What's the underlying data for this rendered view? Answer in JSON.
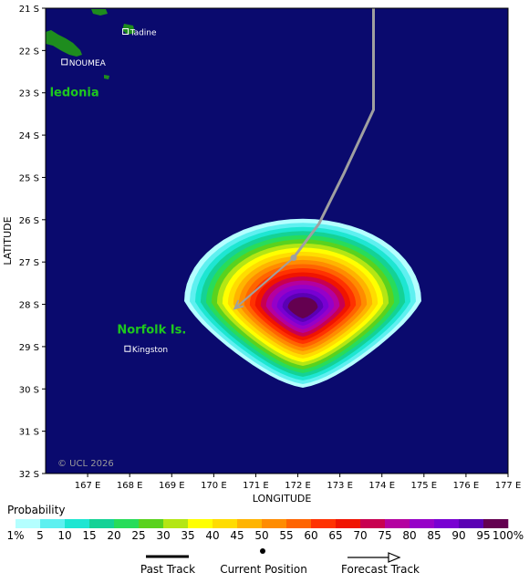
{
  "map": {
    "lat_ticks": [
      "21 S",
      "22 S",
      "23 S",
      "24 S",
      "25 S",
      "26 S",
      "27 S",
      "28 S",
      "29 S",
      "30 S",
      "31 S",
      "32 S"
    ],
    "lon_ticks": [
      "167 E",
      "168 E",
      "169 E",
      "170 E",
      "171 E",
      "172 E",
      "173 E",
      "174 E",
      "175 E",
      "176 E",
      "177 E"
    ],
    "x_axis_title": "LONGITUDE",
    "y_axis_title": "LATITUDE",
    "copyright": "© UCL 2026",
    "ocean_color": "#0a0a6e",
    "land_color": "#1e8c1e",
    "places": [
      {
        "name": "Tadine",
        "lat": -21.55,
        "lon": 167.9
      },
      {
        "name": "NOUMEA",
        "lat": -22.27,
        "lon": 166.45
      },
      {
        "name": "Kingston",
        "lat": -29.05,
        "lon": 167.95
      }
    ],
    "region_labels": [
      {
        "name": "ledonia",
        "lat": -23.0,
        "lon": 166.1
      },
      {
        "name": "Norfolk Is.",
        "lat": -28.6,
        "lon": 167.7
      }
    ],
    "track": {
      "past": [
        {
          "lat": -21.0,
          "lon": 173.8
        },
        {
          "lat": -22.0,
          "lon": 173.8
        },
        {
          "lat": -23.4,
          "lon": 173.8
        },
        {
          "lat": -24.9,
          "lon": 173.1
        },
        {
          "lat": -26.1,
          "lon": 172.5
        }
      ],
      "current": {
        "lat": -26.9,
        "lon": 171.9
      },
      "forecast_end": {
        "lat": -28.1,
        "lon": 170.5
      }
    }
  },
  "legend": {
    "title": "Probability",
    "colors": [
      "#b4ffff",
      "#5ef0f0",
      "#1ee6d2",
      "#14d296",
      "#28dc5a",
      "#5ad21e",
      "#b4e614",
      "#ffff00",
      "#ffdc00",
      "#ffb400",
      "#ff8c00",
      "#ff6400",
      "#ff3200",
      "#f01400",
      "#c80050",
      "#b400a0",
      "#9600c8",
      "#7800d2",
      "#5a00b4",
      "#640050"
    ],
    "labels": [
      "1%",
      "5",
      "10",
      "15",
      "20",
      "25",
      "30",
      "35",
      "40",
      "45",
      "50",
      "55",
      "60",
      "65",
      "70",
      "75",
      "80",
      "85",
      "90",
      "95",
      "100%"
    ]
  },
  "track_legend": {
    "past": "Past Track",
    "current": "Current Position",
    "forecast": "Forecast Track"
  }
}
